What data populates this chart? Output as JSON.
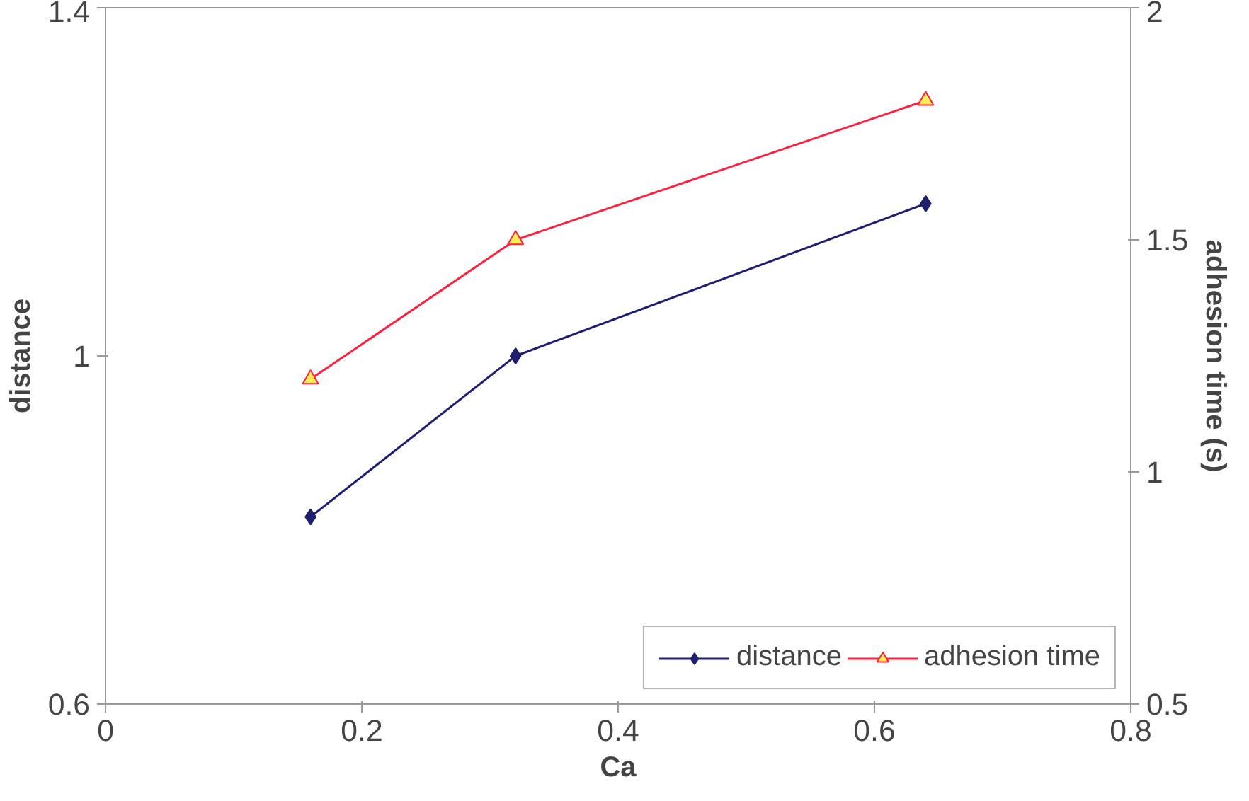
{
  "chart_data": {
    "type": "line",
    "xlabel": "Ca",
    "ylabel": "distance",
    "y2label": "adhesion time (s)",
    "x": [
      0.16,
      0.32,
      0.64
    ],
    "series": [
      {
        "name": "distance",
        "color": "#1f1f6e",
        "values": [
          0.815,
          1.0,
          1.175
        ],
        "marker": "diamond"
      },
      {
        "name": "adhesion time",
        "color": "#ff2040",
        "values": [
          1.2,
          1.5,
          1.8
        ],
        "marker": "triangle",
        "axis": "y2"
      }
    ],
    "xlim": [
      0,
      0.8
    ],
    "xticks": [
      0,
      0.2,
      0.4,
      0.6,
      0.8
    ],
    "ylim": [
      0.6,
      1.4
    ],
    "yticks": [
      0.6,
      1,
      1.4
    ],
    "y2lim": [
      0.5,
      2
    ],
    "y2ticks": [
      0.5,
      1,
      1.5,
      2
    ],
    "grid": false,
    "legend": "bottom right"
  }
}
